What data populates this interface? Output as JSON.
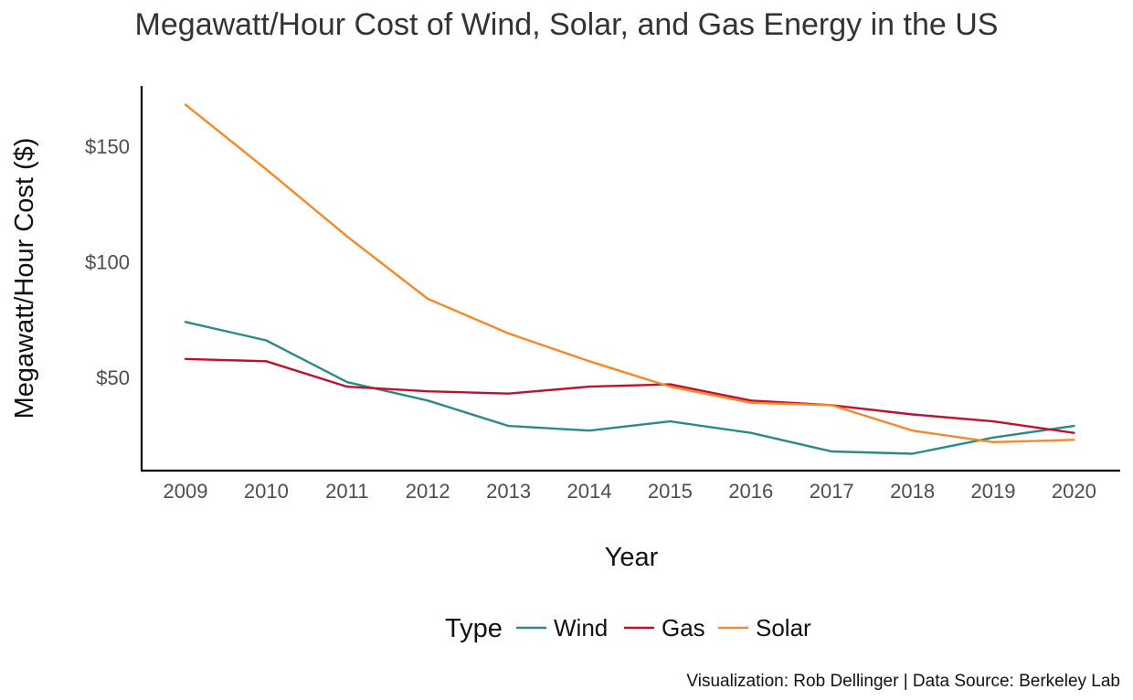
{
  "chart_data": {
    "type": "line",
    "title": "Megawatt/Hour Cost of Wind, Solar, and Gas Energy in the US",
    "xlabel": "Year",
    "ylabel": "Megawatt/Hour Cost ($)",
    "x": [
      2009,
      2010,
      2011,
      2012,
      2013,
      2014,
      2015,
      2016,
      2017,
      2018,
      2019,
      2020
    ],
    "x_tick_labels": [
      "2009",
      "2010",
      "2011",
      "2012",
      "2013",
      "2014",
      "2015",
      "2016",
      "2017",
      "2018",
      "2019",
      "2020"
    ],
    "y_ticks": [
      50,
      100,
      150
    ],
    "y_tick_labels": [
      "$50",
      "$100",
      "$150"
    ],
    "ylim": [
      17,
      175
    ],
    "grid": false,
    "legend": {
      "title": "Type",
      "position": "bottom"
    },
    "series": [
      {
        "name": "Wind",
        "color": "#2a8a86",
        "values": [
          74,
          66,
          48,
          40,
          29,
          27,
          31,
          26,
          18,
          17,
          24,
          29
        ]
      },
      {
        "name": "Gas",
        "color": "#c0102f",
        "values": [
          58,
          57,
          46,
          44,
          43,
          46,
          47,
          40,
          38,
          34,
          31,
          26
        ]
      },
      {
        "name": "Solar",
        "color": "#f5882a",
        "values": [
          168,
          140,
          111,
          84,
          69,
          57,
          46,
          39,
          38,
          27,
          22,
          23
        ]
      }
    ],
    "caption": "Visualization: Rob Dellinger | Data Source: Berkeley Lab"
  }
}
